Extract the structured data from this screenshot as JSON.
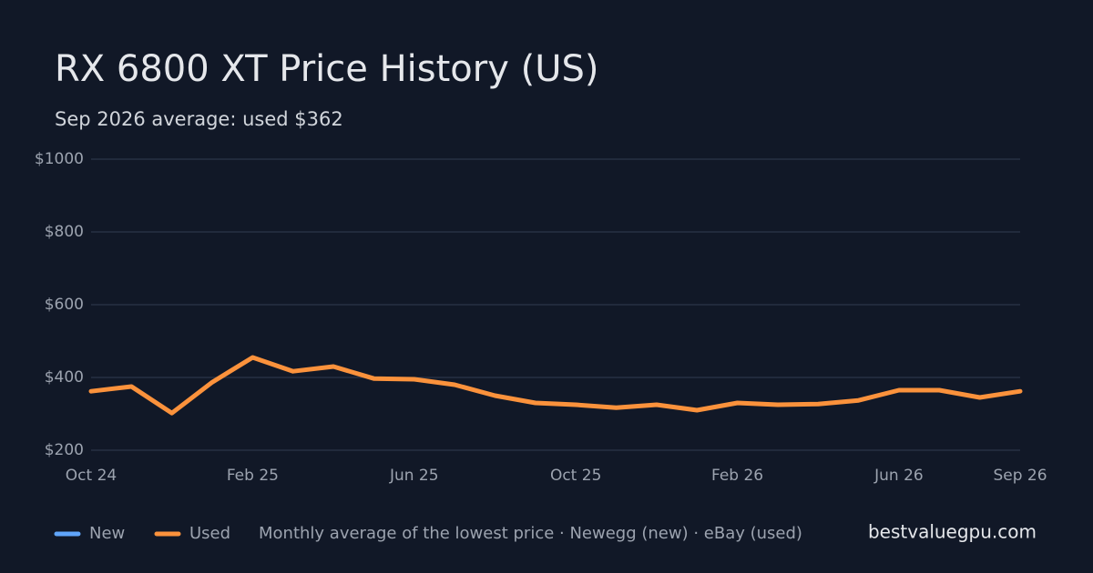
{
  "chart_data": {
    "type": "line",
    "title": "RX 6800 XT Price History (US)",
    "subtitle": "Sep 2026 average: used $362",
    "categories": [
      "Oct 24",
      null,
      null,
      null,
      "Feb 25",
      null,
      null,
      null,
      "Jun 25",
      null,
      null,
      null,
      "Oct 25",
      null,
      null,
      null,
      "Feb 26",
      null,
      null,
      null,
      "Jun 26",
      null,
      null,
      "Sep 26"
    ],
    "series": [
      {
        "name": "New",
        "color": "#60a5fa",
        "values": [
          null,
          null,
          null,
          null,
          null,
          null,
          null,
          null,
          null,
          null,
          null,
          null,
          null,
          null,
          null,
          null,
          null,
          null,
          null,
          null,
          null,
          null,
          null,
          null
        ]
      },
      {
        "name": "Used",
        "color": "#fb923c",
        "values": [
          362,
          375,
          302,
          387,
          455,
          417,
          430,
          397,
          395,
          380,
          350,
          330,
          325,
          317,
          325,
          310,
          330,
          325,
          327,
          337,
          365,
          365,
          345,
          362
        ]
      }
    ],
    "ylim": [
      200,
      1000
    ],
    "yticks": [
      {
        "value": 200,
        "label": "$200"
      },
      {
        "value": 400,
        "label": "$400"
      },
      {
        "value": 600,
        "label": "$600"
      },
      {
        "value": 800,
        "label": "$800"
      },
      {
        "value": 1000,
        "label": "$1000"
      }
    ],
    "grid": true,
    "legend": "bottom",
    "note": "Monthly average of the lowest price · Newegg (new) · eBay (used)",
    "source": "bestvaluegpu.com"
  }
}
